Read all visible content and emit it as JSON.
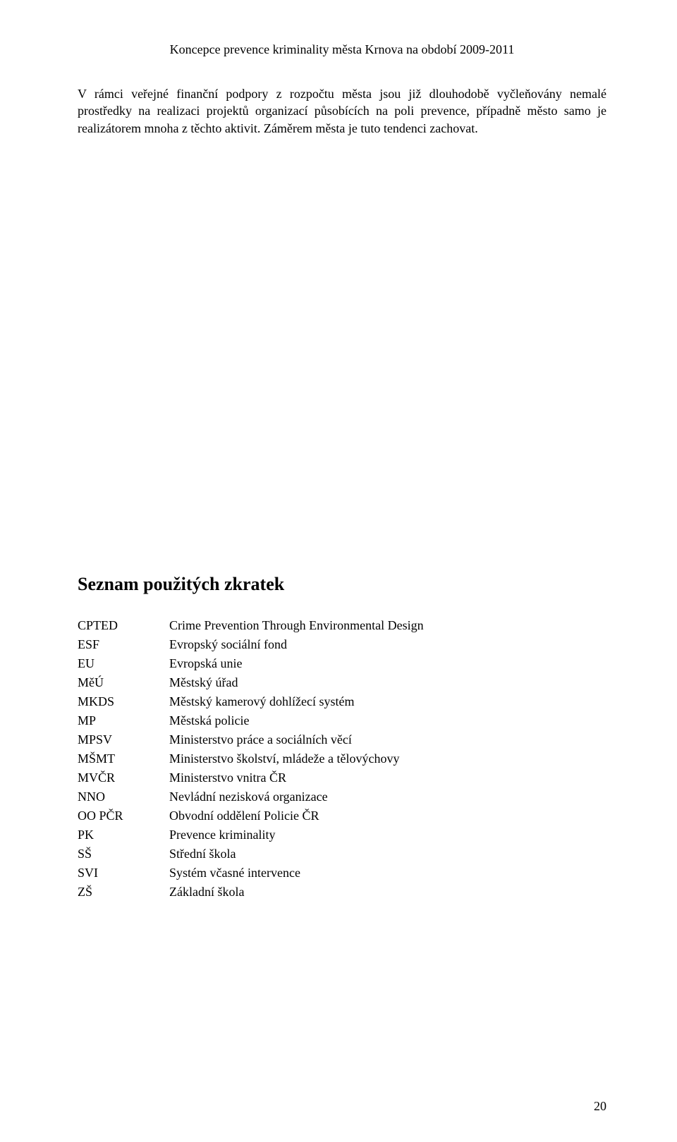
{
  "header": {
    "title": "Koncepce prevence kriminality města Krnova na období 2009-2011"
  },
  "paragraph": {
    "text": "V rámci veřejné finanční podpory z rozpočtu města jsou již dlouhodobě vyčleňovány nemalé prostředky na realizaci projektů organizací působících na poli prevence, případně město samo je realizátorem mnoha z těchto aktivit. Záměrem města je tuto tendenci zachovat."
  },
  "section": {
    "title": "Seznam použitých zkratek"
  },
  "abbreviations": [
    {
      "key": "CPTED",
      "value": "Crime Prevention Through Environmental Design"
    },
    {
      "key": "ESF",
      "value": "Evropský sociální fond"
    },
    {
      "key": "EU",
      "value": "Evropská unie"
    },
    {
      "key": "MěÚ",
      "value": "Městský úřad"
    },
    {
      "key": "MKDS",
      "value": "Městský kamerový dohlížecí systém"
    },
    {
      "key": "MP",
      "value": "Městská policie"
    },
    {
      "key": "MPSV",
      "value": "Ministerstvo práce a sociálních věcí"
    },
    {
      "key": "MŠMT",
      "value": "Ministerstvo školství, mládeže a tělovýchovy"
    },
    {
      "key": "MVČR",
      "value": "Ministerstvo vnitra ČR"
    },
    {
      "key": "NNO",
      "value": "Nevládní nezisková organizace"
    },
    {
      "key": "OO PČR",
      "value": "Obvodní oddělení Policie ČR"
    },
    {
      "key": "PK",
      "value": "Prevence kriminality"
    },
    {
      "key": "SŠ",
      "value": "Střední škola"
    },
    {
      "key": "SVI",
      "value": "Systém včasné intervence"
    },
    {
      "key": "ZŠ",
      "value": "Základní škola"
    }
  ],
  "pageNumber": "20"
}
